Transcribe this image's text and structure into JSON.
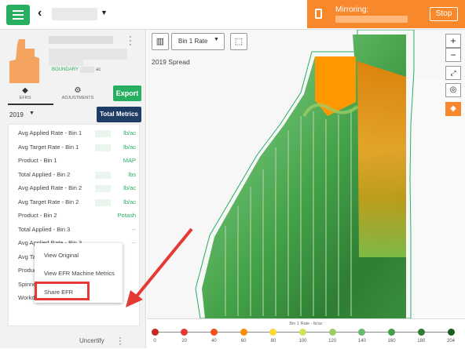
{
  "mirroring": {
    "label": "Mirroring:",
    "stop_label": "Stop"
  },
  "field": {
    "boundary_label": "BOUNDARY",
    "acres_unit": "ac"
  },
  "tabs": [
    {
      "label": "EFRS",
      "icon": "layers-icon"
    },
    {
      "label": "ADJUSTMENTS",
      "icon": "gear-icon"
    }
  ],
  "export_label": "Export",
  "year": "2019",
  "total_metrics_label": "Total Metrics",
  "metrics": [
    {
      "label": "Avg Applied Rate - Bin 1",
      "value": "lb/ac"
    },
    {
      "label": "Avg Target Rate - Bin 1",
      "value": "lb/ac"
    },
    {
      "label": "Product - Bin 1",
      "value": "MAP"
    },
    {
      "label": "Total Applied - Bin 2",
      "value": "lbs"
    },
    {
      "label": "Avg Applied Rate - Bin 2",
      "value": "lb/ac"
    },
    {
      "label": "Avg Target Rate - Bin 2",
      "value": "lb/ac"
    },
    {
      "label": "Product - Bin 2",
      "value": "Potash"
    },
    {
      "label": "Total Applied - Bin 3",
      "value": "--"
    },
    {
      "label": "Avg Applied Rate - Bin 3",
      "value": "--"
    },
    {
      "label": "Avg Targ",
      "value": ""
    },
    {
      "label": "Product",
      "value": ""
    },
    {
      "label": "Spinner",
      "value": ""
    },
    {
      "label": "Workd",
      "value": ""
    }
  ],
  "context_menu": {
    "items": [
      "View Original",
      "View EFR Machine Metrics",
      "Share EFR"
    ]
  },
  "uncertify_label": "Uncertify",
  "map": {
    "rate_select": "Bin 1 Rate",
    "layer_title": "2019 Spread",
    "zoom_in": "+",
    "zoom_out": "−"
  },
  "legend": {
    "title": "Bin 1 Rate - lb/ac",
    "ticks": [
      "0",
      "20",
      "40",
      "60",
      "80",
      "100",
      "120",
      "140",
      "160",
      "180",
      "204"
    ],
    "colors": [
      "#c62828",
      "#e53935",
      "#f4511e",
      "#fb8c00",
      "#fdd835",
      "#d4e157",
      "#9ccc65",
      "#66bb6a",
      "#43a047",
      "#2e7d32",
      "#1b5e20"
    ]
  },
  "colors": {
    "accent_green": "#27ae60",
    "mirroring_orange": "#f7892c",
    "navy": "#1e3c64",
    "highlight_red": "#e53935"
  }
}
